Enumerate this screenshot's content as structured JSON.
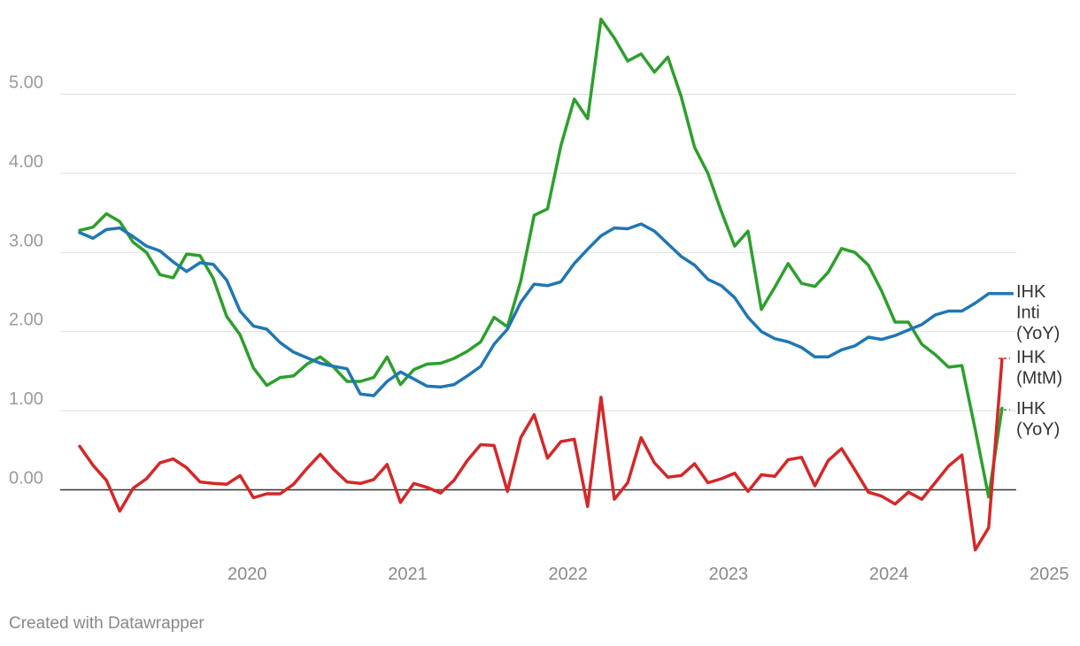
{
  "chart_data": {
    "type": "line",
    "title": "",
    "xlabel": "",
    "ylabel": "",
    "x_start": "2019-06",
    "x_ticks": [
      "2020",
      "2021",
      "2022",
      "2023",
      "2024",
      "2025"
    ],
    "y_ticks": [
      "0.00",
      "1.00",
      "2.00",
      "3.00",
      "4.00",
      "5.00"
    ],
    "ylim": [
      -0.8,
      6.0
    ],
    "grid": true,
    "series": [
      {
        "name": "IHK Inti (YoY)",
        "label_lines": [
          "IHK",
          "Inti",
          "(YoY)"
        ],
        "color": "#1f77b4",
        "values": [
          3.25,
          3.18,
          3.29,
          3.31,
          3.2,
          3.08,
          3.02,
          2.88,
          2.76,
          2.87,
          2.85,
          2.65,
          2.26,
          2.07,
          2.03,
          1.86,
          1.74,
          1.67,
          1.6,
          1.56,
          1.53,
          1.21,
          1.19,
          1.37,
          1.49,
          1.4,
          1.31,
          1.3,
          1.33,
          1.44,
          1.56,
          1.84,
          2.03,
          2.37,
          2.6,
          2.58,
          2.63,
          2.86,
          3.04,
          3.21,
          3.31,
          3.3,
          3.36,
          3.27,
          3.11,
          2.95,
          2.84,
          2.66,
          2.58,
          2.43,
          2.18,
          2.0,
          1.91,
          1.87,
          1.8,
          1.68,
          1.68,
          1.77,
          1.82,
          1.93,
          1.9,
          1.95,
          2.02,
          2.09,
          2.21,
          2.26,
          2.26,
          2.36,
          2.48,
          2.48
        ]
      },
      {
        "name": "IHK (MtM)",
        "label_lines": [
          "IHK",
          "(MtM)"
        ],
        "color": "#d62728",
        "values": [
          0.55,
          0.31,
          0.12,
          -0.27,
          0.02,
          0.14,
          0.34,
          0.39,
          0.28,
          0.1,
          0.08,
          0.07,
          0.18,
          -0.1,
          -0.05,
          -0.05,
          0.07,
          0.27,
          0.45,
          0.26,
          0.1,
          0.08,
          0.13,
          0.32,
          -0.16,
          0.08,
          0.03,
          -0.04,
          0.12,
          0.37,
          0.57,
          0.56,
          -0.02,
          0.66,
          0.95,
          0.4,
          0.61,
          0.64,
          -0.21,
          1.17,
          -0.12,
          0.09,
          0.66,
          0.34,
          0.16,
          0.18,
          0.33,
          0.09,
          0.14,
          0.21,
          -0.02,
          0.19,
          0.17,
          0.38,
          0.41,
          0.05,
          0.37,
          0.52,
          0.25,
          -0.03,
          -0.08,
          -0.18,
          -0.03,
          -0.12,
          0.09,
          0.3,
          0.44,
          -0.76,
          -0.48,
          1.65
        ]
      },
      {
        "name": "IHK (YoY)",
        "label_lines": [
          "IHK",
          "(YoY)"
        ],
        "color": "#2ca02c",
        "values": [
          3.28,
          3.32,
          3.49,
          3.39,
          3.13,
          3.0,
          2.72,
          2.68,
          2.98,
          2.96,
          2.67,
          2.19,
          1.96,
          1.54,
          1.32,
          1.42,
          1.44,
          1.59,
          1.68,
          1.55,
          1.37,
          1.37,
          1.42,
          1.68,
          1.33,
          1.52,
          1.59,
          1.6,
          1.66,
          1.75,
          1.87,
          2.18,
          2.06,
          2.64,
          3.47,
          3.55,
          4.35,
          4.94,
          4.69,
          5.95,
          5.71,
          5.42,
          5.51,
          5.28,
          5.47,
          4.97,
          4.33,
          4.0,
          3.52,
          3.08,
          3.27,
          2.28,
          2.56,
          2.86,
          2.61,
          2.57,
          2.75,
          3.05,
          3.0,
          2.84,
          2.51,
          2.12,
          2.12,
          1.84,
          1.71,
          1.55,
          1.57,
          0.76,
          -0.09,
          1.03
        ]
      }
    ]
  },
  "footer": {
    "credit": "Created with Datawrapper"
  }
}
